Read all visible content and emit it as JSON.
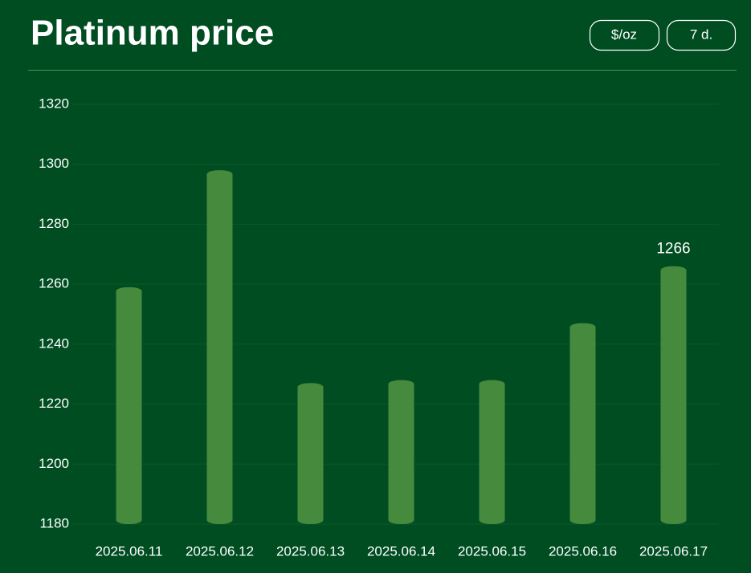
{
  "buttons": [
    "$/oz",
    "7 d."
  ],
  "chart_data": {
    "type": "bar",
    "title": "Platinum price",
    "categories": [
      "2025.06.11",
      "2025.06.12",
      "2025.06.13",
      "2025.06.14",
      "2025.06.15",
      "2025.06.16",
      "2025.06.17"
    ],
    "values": [
      1259,
      1298,
      1227,
      1228,
      1228,
      1247,
      1266
    ],
    "labeled_index": 6,
    "color": "#468a3e",
    "ylim": [
      1180,
      1320
    ],
    "yticks": [
      1180,
      1200,
      1220,
      1240,
      1260,
      1280,
      1300,
      1320
    ],
    "grid": true
  }
}
